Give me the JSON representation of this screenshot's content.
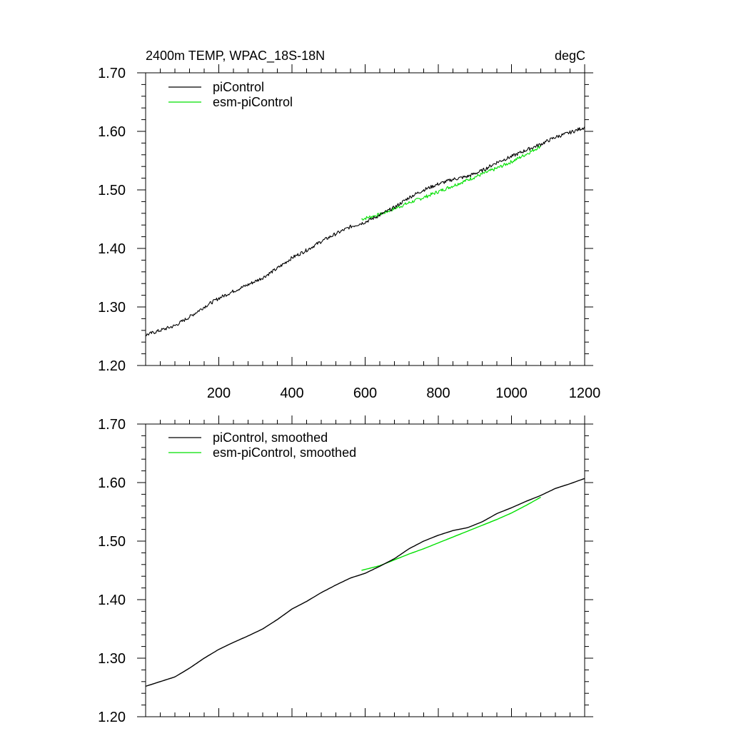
{
  "chart_data": [
    {
      "type": "line",
      "title": "2400m TEMP, WPAC_18S-18N",
      "units": "degC",
      "xlim": [
        0,
        1200
      ],
      "ylim": [
        1.2,
        1.7
      ],
      "xticks": [
        200,
        400,
        600,
        800,
        1000,
        1200
      ],
      "xtick_labels": [
        "200",
        "400",
        "600",
        "800",
        "1000",
        "1200"
      ],
      "yticks": [
        1.2,
        1.3,
        1.4,
        1.5,
        1.6,
        1.7
      ],
      "ytick_labels": [
        "1.20",
        "1.30",
        "1.40",
        "1.50",
        "1.60",
        "1.70"
      ],
      "legend_position": "top-left",
      "series": [
        {
          "name": "piControl",
          "color": "#000000",
          "noise": true,
          "x": [
            0,
            40,
            80,
            120,
            160,
            200,
            240,
            280,
            320,
            360,
            400,
            440,
            480,
            520,
            560,
            600,
            640,
            680,
            720,
            760,
            800,
            840,
            880,
            920,
            960,
            1000,
            1040,
            1080,
            1120,
            1160,
            1200
          ],
          "y": [
            1.252,
            1.26,
            1.268,
            1.283,
            1.3,
            1.315,
            1.327,
            1.338,
            1.35,
            1.366,
            1.384,
            1.397,
            1.412,
            1.425,
            1.437,
            1.445,
            1.457,
            1.47,
            1.487,
            1.5,
            1.51,
            1.518,
            1.523,
            1.533,
            1.547,
            1.557,
            1.568,
            1.578,
            1.59,
            1.598,
            1.607
          ]
        },
        {
          "name": "esm-piControl",
          "color": "#00e000",
          "noise": true,
          "x": [
            590,
            640,
            680,
            720,
            760,
            800,
            840,
            880,
            920,
            960,
            1000,
            1040,
            1080
          ],
          "y": [
            1.45,
            1.458,
            1.468,
            1.478,
            1.487,
            1.497,
            1.507,
            1.517,
            1.527,
            1.537,
            1.548,
            1.561,
            1.575
          ]
        }
      ]
    },
    {
      "type": "line",
      "title": "",
      "units": "",
      "xlim": [
        0,
        1200
      ],
      "ylim": [
        1.2,
        1.7
      ],
      "xticks": [
        200,
        400,
        600,
        800,
        1000,
        1200
      ],
      "xtick_labels": [],
      "yticks": [
        1.2,
        1.3,
        1.4,
        1.5,
        1.6,
        1.7
      ],
      "ytick_labels": [
        "1.20",
        "1.30",
        "1.40",
        "1.50",
        "1.60",
        "1.70"
      ],
      "legend_position": "top-left",
      "series": [
        {
          "name": "piControl, smoothed",
          "color": "#000000",
          "noise": false,
          "x": [
            0,
            40,
            80,
            120,
            160,
            200,
            240,
            280,
            320,
            360,
            400,
            440,
            480,
            520,
            560,
            600,
            640,
            680,
            720,
            760,
            800,
            840,
            880,
            920,
            960,
            1000,
            1040,
            1080,
            1120,
            1160,
            1200
          ],
          "y": [
            1.252,
            1.26,
            1.268,
            1.283,
            1.3,
            1.315,
            1.327,
            1.338,
            1.35,
            1.366,
            1.384,
            1.397,
            1.412,
            1.425,
            1.437,
            1.445,
            1.457,
            1.47,
            1.487,
            1.5,
            1.51,
            1.518,
            1.523,
            1.533,
            1.547,
            1.557,
            1.568,
            1.578,
            1.59,
            1.598,
            1.607
          ]
        },
        {
          "name": "esm-piControl, smoothed",
          "color": "#00e000",
          "noise": false,
          "x": [
            590,
            640,
            680,
            720,
            760,
            800,
            840,
            880,
            920,
            960,
            1000,
            1040,
            1080
          ],
          "y": [
            1.45,
            1.458,
            1.468,
            1.478,
            1.487,
            1.497,
            1.507,
            1.517,
            1.527,
            1.537,
            1.548,
            1.561,
            1.575
          ]
        }
      ]
    }
  ]
}
